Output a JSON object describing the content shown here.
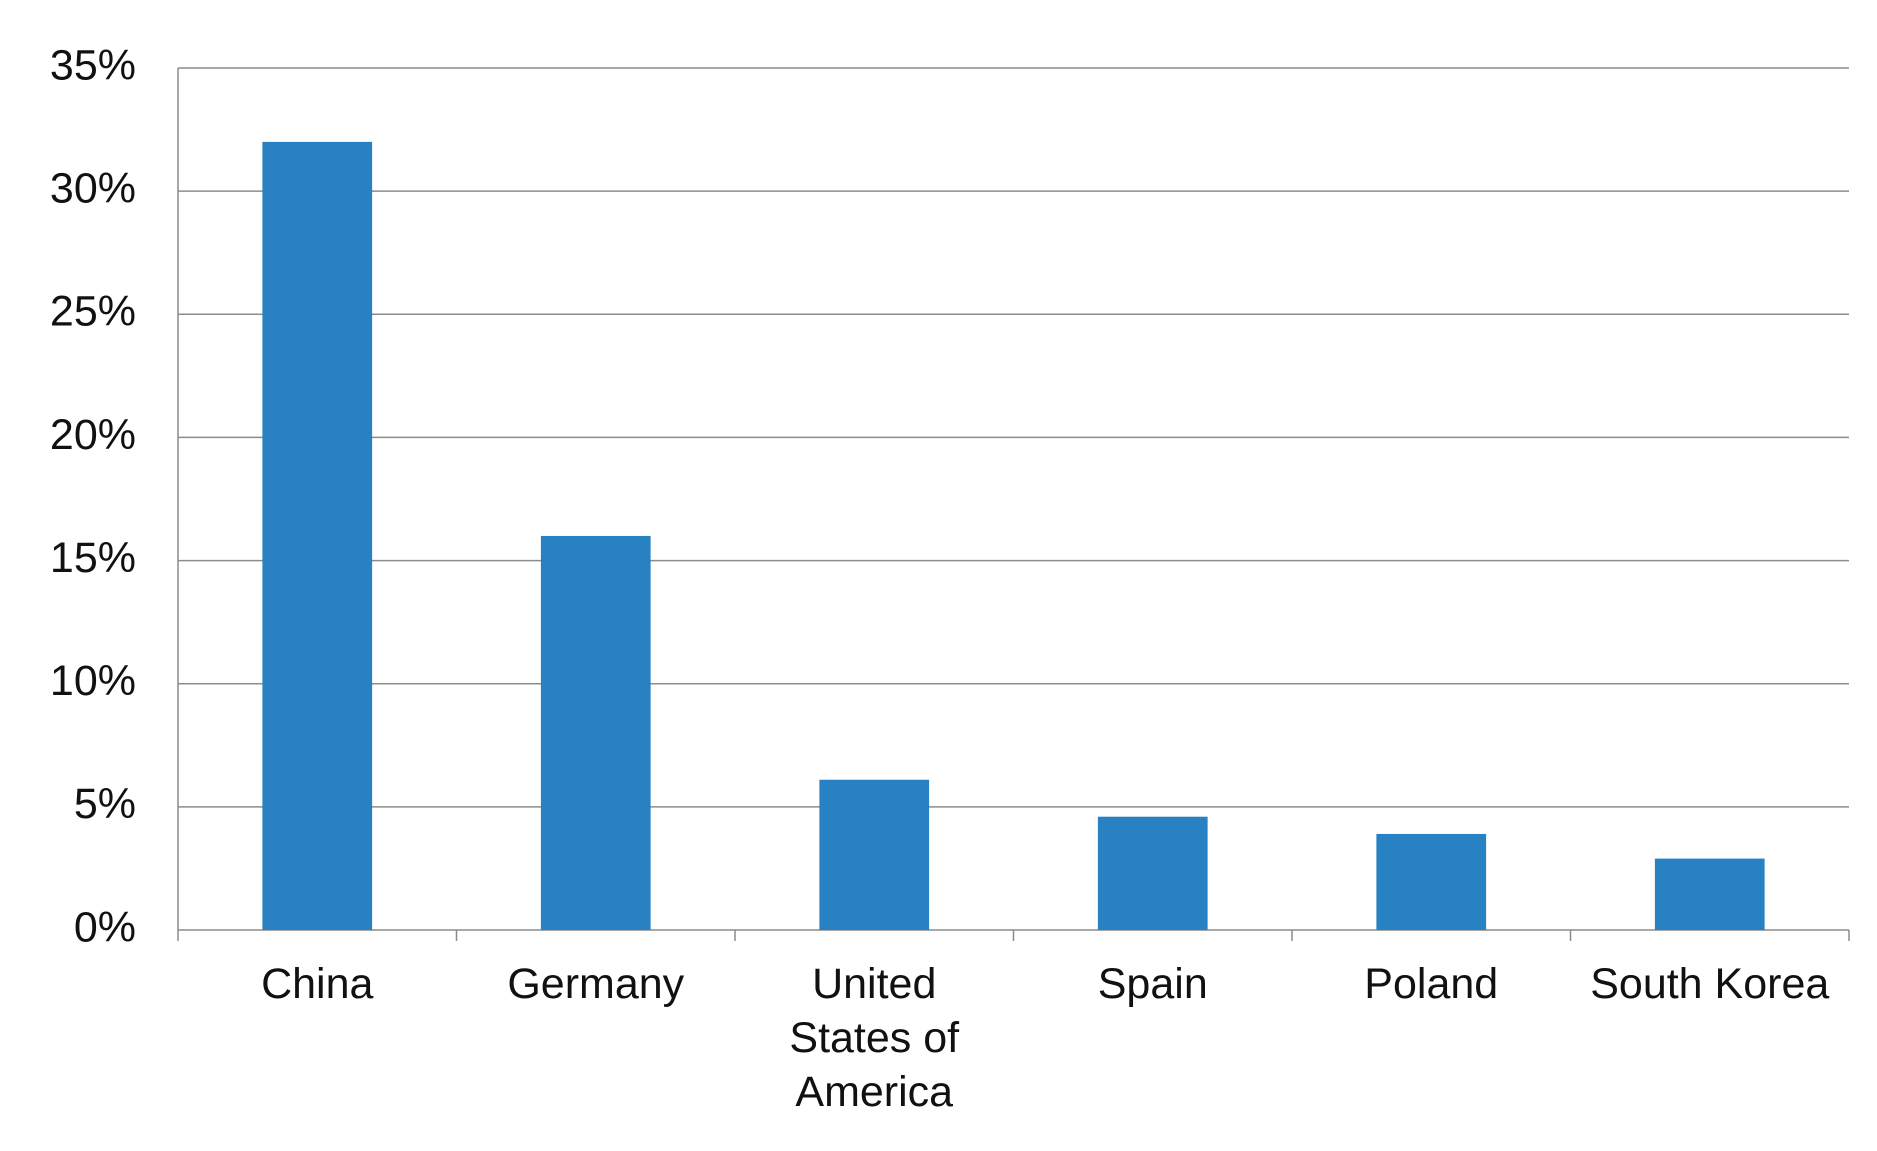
{
  "chart_data": {
    "type": "bar",
    "categories": [
      "China",
      "Germany",
      "United States of America",
      "Spain",
      "Poland",
      "South Korea"
    ],
    "values": [
      32,
      16,
      6.1,
      4.6,
      3.9,
      2.9
    ],
    "color": "#2781c2",
    "ylim": [
      0,
      35
    ],
    "yticks": [
      {
        "value": 0,
        "label": "0%"
      },
      {
        "value": 5,
        "label": "5%"
      },
      {
        "value": 10,
        "label": "10%"
      },
      {
        "value": 15,
        "label": "15%"
      },
      {
        "value": 20,
        "label": "20%"
      },
      {
        "value": 25,
        "label": "25%"
      },
      {
        "value": 30,
        "label": "30%"
      },
      {
        "value": 35,
        "label": "35%"
      }
    ],
    "grid": true
  }
}
